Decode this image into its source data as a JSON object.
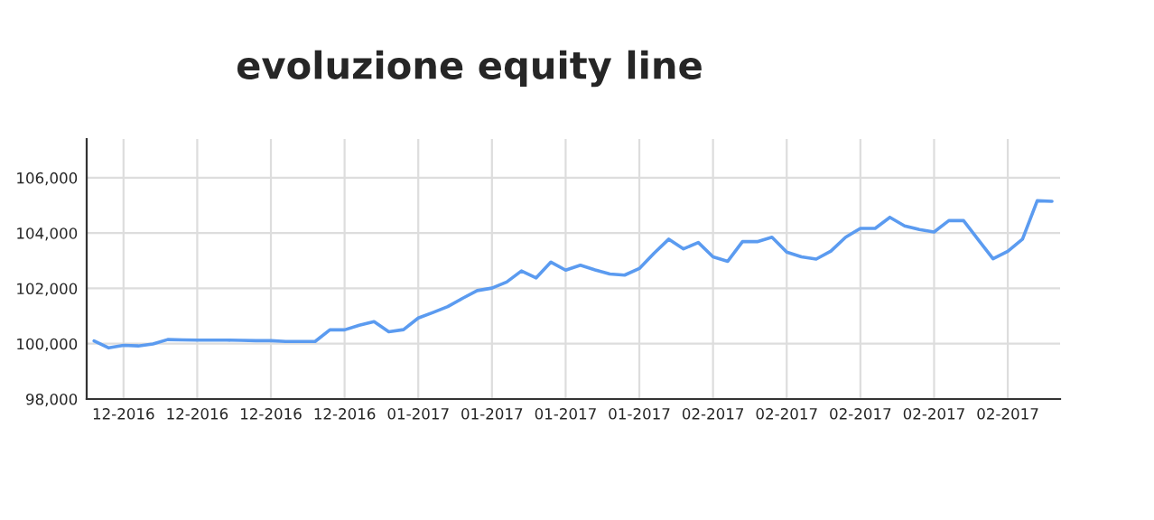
{
  "chart_data": {
    "type": "line",
    "title": "evoluzione equity line",
    "categories": [
      null,
      null,
      "12-2016",
      null,
      null,
      null,
      null,
      "12-2016",
      null,
      null,
      null,
      null,
      "12-2016",
      null,
      null,
      null,
      null,
      "12-2016",
      null,
      null,
      null,
      null,
      "01-2017",
      null,
      null,
      null,
      null,
      "01-2017",
      null,
      null,
      null,
      null,
      "01-2017",
      null,
      null,
      null,
      null,
      "01-2017",
      null,
      null,
      null,
      null,
      "02-2017",
      null,
      null,
      null,
      null,
      "02-2017",
      null,
      null,
      null,
      null,
      "02-2017",
      null,
      null,
      null,
      null,
      "02-2017",
      null,
      null,
      null,
      null,
      "02-2017",
      null,
      null,
      null
    ],
    "series": [
      {
        "color": "#5b9bf0",
        "values": [
          100100,
          99850,
          99940,
          99920,
          99990,
          100150,
          100140,
          100130,
          100130,
          100130,
          100120,
          100110,
          100110,
          100080,
          100080,
          100080,
          100500,
          100500,
          100670,
          100800,
          100430,
          100510,
          100930,
          101130,
          101340,
          101640,
          101920,
          102010,
          102230,
          102630,
          102380,
          102950,
          102660,
          102840,
          102670,
          102520,
          102480,
          102720,
          103270,
          103780,
          103430,
          103660,
          103140,
          102980,
          103690,
          103690,
          103850,
          103310,
          103140,
          103060,
          103350,
          103850,
          104170,
          104170,
          104570,
          104260,
          104130,
          104040,
          104450,
          104450,
          103760,
          103070,
          103340,
          103780,
          105170,
          105150
        ]
      }
    ],
    "ylim": [
      98000,
      107400
    ],
    "yticks": [
      {
        "value": 98000,
        "label": "98,000"
      },
      {
        "value": 100000,
        "label": "100,000"
      },
      {
        "value": 102000,
        "label": "102,000"
      },
      {
        "value": 104000,
        "label": "104,000"
      },
      {
        "value": 106000,
        "label": "106,000"
      }
    ],
    "grid": true,
    "marker": "none",
    "line_style": "solid"
  }
}
